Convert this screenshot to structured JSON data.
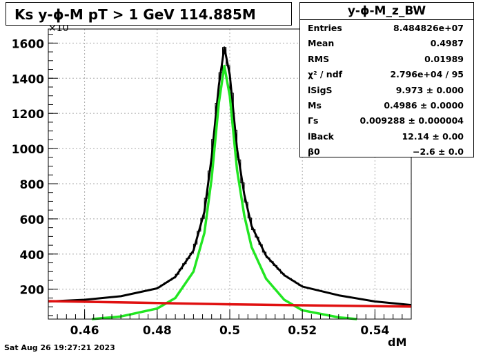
{
  "title": "Ks y-ϕ-M pT > 1 GeV  114.885M",
  "stats": {
    "name": "y-ϕ-M_z_BW",
    "rows": [
      {
        "key": "Entries",
        "value": "8.484826e+07"
      },
      {
        "key": "Mean",
        "value": "0.4987"
      },
      {
        "key": "RMS",
        "value": "0.01989"
      },
      {
        "key": "χ² / ndf",
        "value": "2.796e+04 / 95"
      },
      {
        "key": "lSigS",
        "value": "9.973 ± 0.000"
      },
      {
        "key": "Ms",
        "value": "0.4986 ± 0.0000"
      },
      {
        "key": "Γs",
        "value": "0.009288 ± 0.000004"
      },
      {
        "key": "lBack",
        "value": "12.14 ± 0.00"
      },
      {
        "key": "β0",
        "value": "−2.6 ± 0.0"
      }
    ]
  },
  "datestamp": "Sat Aug 26 19:27:21 2023",
  "chart_data": {
    "type": "line",
    "xlabel": "dM",
    "ylabel": "",
    "y_exponent_label": "×10",
    "xlim": [
      0.45,
      0.55
    ],
    "ylim": [
      30,
      1680
    ],
    "x_ticks": [
      "0.46",
      "0.48",
      "0.5",
      "0.52",
      "0.54"
    ],
    "y_ticks": [
      "200",
      "400",
      "600",
      "800",
      "1000",
      "1200",
      "1400",
      "1600"
    ],
    "grid": true,
    "colors": {
      "histogram": "#000000",
      "total_fit": "#000000",
      "signal": "#22e622",
      "background": "#e01010"
    },
    "series": [
      {
        "name": "",
        "role": "histogram",
        "x": [
          0.45,
          0.46,
          0.47,
          0.48,
          0.485,
          0.49,
          0.493,
          0.495,
          0.497,
          0.4985,
          0.5,
          0.502,
          0.504,
          0.506,
          0.51,
          0.515,
          0.52,
          0.53,
          0.54,
          0.55
        ],
        "y": [
          130,
          140,
          160,
          205,
          270,
          420,
          640,
          950,
          1360,
          1575,
          1420,
          1000,
          740,
          560,
          390,
          280,
          215,
          165,
          130,
          110
        ]
      },
      {
        "name": "",
        "role": "total_fit",
        "x": [
          0.45,
          0.46,
          0.47,
          0.48,
          0.485,
          0.49,
          0.493,
          0.495,
          0.497,
          0.4985,
          0.5,
          0.502,
          0.504,
          0.506,
          0.51,
          0.515,
          0.52,
          0.53,
          0.54,
          0.55
        ],
        "y": [
          130,
          140,
          160,
          205,
          270,
          420,
          640,
          950,
          1360,
          1575,
          1420,
          1000,
          740,
          560,
          390,
          280,
          215,
          165,
          130,
          110
        ]
      },
      {
        "name": "",
        "role": "signal",
        "x": [
          0.462,
          0.47,
          0.48,
          0.485,
          0.49,
          0.493,
          0.495,
          0.497,
          0.4985,
          0.5,
          0.502,
          0.504,
          0.506,
          0.51,
          0.515,
          0.52,
          0.53,
          0.535
        ],
        "y": [
          30,
          45,
          90,
          150,
          300,
          520,
          830,
          1260,
          1470,
          1300,
          880,
          620,
          440,
          260,
          140,
          80,
          40,
          30
        ]
      },
      {
        "name": "",
        "role": "background",
        "x": [
          0.45,
          0.475,
          0.5,
          0.525,
          0.55
        ],
        "y": [
          132,
          123,
          114,
          107,
          101
        ]
      }
    ]
  }
}
